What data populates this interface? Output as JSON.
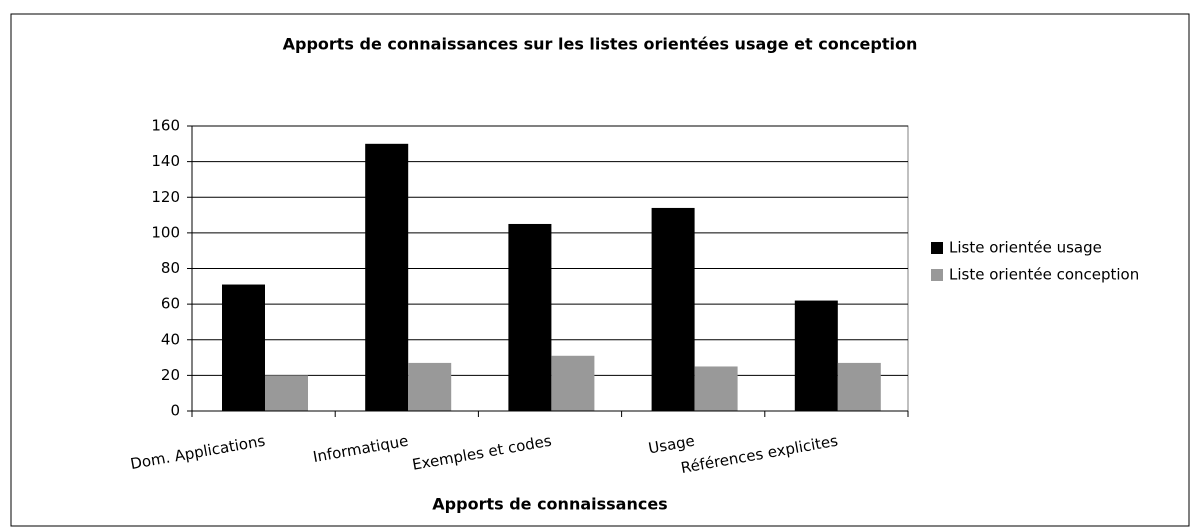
{
  "chart_data": {
    "type": "bar",
    "title": "Apports de connaissances sur les listes orientées usage et conception",
    "x_label": "Apports de connaissances",
    "categories": [
      "Dom. Applications",
      "Informatique",
      "Exemples et codes",
      "Usage",
      "Références explicites"
    ],
    "series": [
      {
        "name": "Liste orientée usage",
        "color": "#000000",
        "values": [
          71,
          150,
          105,
          114,
          62
        ]
      },
      {
        "name": "Liste orientée conception",
        "color": "#999999",
        "values": [
          20,
          27,
          31,
          25,
          27
        ]
      }
    ],
    "ylim": [
      0,
      160
    ],
    "yticks": [
      0,
      20,
      40,
      60,
      80,
      100,
      120,
      140,
      160
    ],
    "grid": true,
    "legend": "right"
  }
}
